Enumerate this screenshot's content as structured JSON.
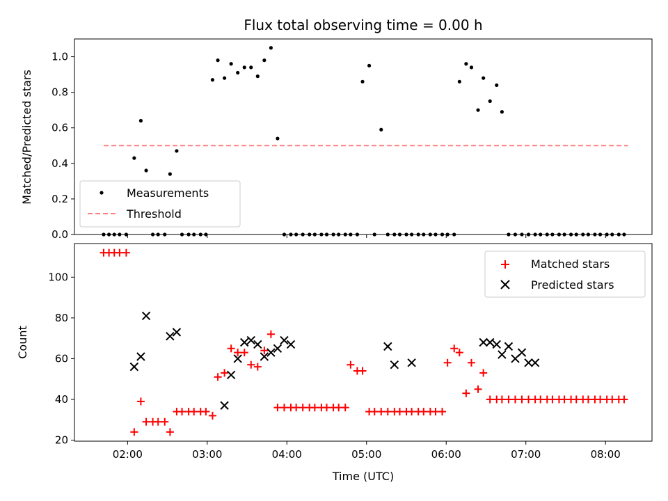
{
  "chart_data": [
    {
      "type": "scatter",
      "title": "Flux total observing time = 0.00 h",
      "ylabel": "Matched/Predicted stars",
      "xlabel": "",
      "xlim": [
        "01:20",
        "08:35"
      ],
      "ylim": [
        0,
        1.1
      ],
      "yticks": [
        "0.0",
        "0.2",
        "0.4",
        "0.6",
        "0.8",
        "1.0"
      ],
      "grid": false,
      "legend_position": "lower-left",
      "threshold": {
        "name": "Threshold",
        "value": 0.5,
        "x_start": "01:42",
        "x_end": "08:17",
        "color": "#ff7f7f"
      },
      "series": [
        {
          "name": "Measurements",
          "color": "#000000",
          "x": [
            "01:42",
            "01:46",
            "01:50",
            "01:54",
            "01:59",
            "02:05",
            "02:10",
            "02:14",
            "02:19",
            "02:23",
            "02:28",
            "02:32",
            "02:37",
            "02:41",
            "02:46",
            "02:50",
            "02:55",
            "02:59",
            "03:04",
            "03:08",
            "03:13",
            "03:18",
            "03:23",
            "03:28",
            "03:33",
            "03:38",
            "03:43",
            "03:48",
            "03:53",
            "03:58",
            "04:03",
            "04:07",
            "04:12",
            "04:17",
            "04:21",
            "04:26",
            "04:30",
            "04:35",
            "04:39",
            "04:44",
            "04:48",
            "04:53",
            "04:57",
            "05:02",
            "05:06",
            "05:11",
            "05:16",
            "05:21",
            "05:25",
            "05:30",
            "05:34",
            "05:39",
            "05:43",
            "05:48",
            "05:52",
            "05:57",
            "06:01",
            "06:06",
            "06:10",
            "06:15",
            "06:19",
            "06:24",
            "06:28",
            "06:33",
            "06:38",
            "06:42",
            "06:47",
            "06:52",
            "06:57",
            "07:02",
            "07:07",
            "07:11",
            "07:16",
            "07:20",
            "07:25",
            "07:29",
            "07:34",
            "07:38",
            "07:43",
            "07:47",
            "07:52",
            "07:56",
            "08:01",
            "08:05",
            "08:10",
            "08:14"
          ],
          "values": [
            0,
            0,
            0,
            0,
            0,
            0.43,
            0.64,
            0.36,
            0,
            0,
            0,
            0.34,
            0.47,
            0,
            0,
            0,
            0,
            0,
            0.87,
            0.98,
            0.88,
            0.96,
            0.91,
            0.94,
            0.94,
            0.89,
            0.98,
            1.05,
            0.54,
            0,
            0,
            0,
            0,
            0,
            0,
            0,
            0,
            0,
            0,
            0,
            0,
            0,
            0.86,
            0.95,
            0,
            0.59,
            0,
            0,
            0,
            0,
            0,
            0,
            0,
            0,
            0,
            0,
            0,
            0,
            0.86,
            0.96,
            0.94,
            0.7,
            0.88,
            0.75,
            0.84,
            0.69,
            0,
            0,
            0,
            0,
            0,
            0,
            0,
            0,
            0,
            0,
            0,
            0,
            0,
            0,
            0,
            0,
            0,
            0,
            0,
            0
          ]
        }
      ]
    },
    {
      "type": "scatter",
      "title": "",
      "xlabel": "Time (UTC)",
      "ylabel": "Count",
      "xlim": [
        "01:20",
        "08:35"
      ],
      "ylim": [
        19.5,
        116.5
      ],
      "xticks": [
        "02:00",
        "03:00",
        "04:00",
        "05:00",
        "06:00",
        "07:00",
        "08:00"
      ],
      "yticks": [
        "20",
        "40",
        "60",
        "80",
        "100"
      ],
      "grid": false,
      "legend_position": "upper-right",
      "series": [
        {
          "name": "Matched stars",
          "marker": "plus",
          "color": "#ff0000",
          "x": [
            "01:42",
            "01:46",
            "01:50",
            "01:54",
            "01:59",
            "02:05",
            "02:10",
            "02:14",
            "02:19",
            "02:23",
            "02:28",
            "02:32",
            "02:37",
            "02:41",
            "02:46",
            "02:50",
            "02:55",
            "02:59",
            "03:04",
            "03:08",
            "03:13",
            "03:18",
            "03:23",
            "03:28",
            "03:33",
            "03:38",
            "03:43",
            "03:48",
            "03:53",
            "03:58",
            "04:03",
            "04:07",
            "04:12",
            "04:17",
            "04:21",
            "04:26",
            "04:30",
            "04:35",
            "04:39",
            "04:44",
            "04:48",
            "04:53",
            "04:57",
            "05:02",
            "05:06",
            "05:11",
            "05:16",
            "05:21",
            "05:25",
            "05:30",
            "05:34",
            "05:39",
            "05:43",
            "05:48",
            "05:52",
            "05:57",
            "06:01",
            "06:06",
            "06:10",
            "06:15",
            "06:19",
            "06:24",
            "06:28",
            "06:33",
            "06:38",
            "06:42",
            "06:47",
            "06:52",
            "06:57",
            "07:02",
            "07:07",
            "07:11",
            "07:16",
            "07:20",
            "07:25",
            "07:29",
            "07:34",
            "07:38",
            "07:43",
            "07:47",
            "07:52",
            "07:56",
            "08:01",
            "08:05",
            "08:10",
            "08:14"
          ],
          "values": [
            112,
            112,
            112,
            112,
            112,
            24,
            39,
            29,
            29,
            29,
            29,
            24,
            34,
            34,
            34,
            34,
            34,
            34,
            32,
            51,
            53,
            65,
            63,
            63,
            57,
            56,
            64,
            72,
            36,
            36,
            36,
            36,
            36,
            36,
            36,
            36,
            36,
            36,
            36,
            36,
            57,
            54,
            54,
            34,
            34,
            34,
            34,
            34,
            34,
            34,
            34,
            34,
            34,
            34,
            34,
            34,
            58,
            65,
            63,
            43,
            58,
            45,
            53,
            40,
            40,
            40,
            40,
            40,
            40,
            40,
            40,
            40,
            40,
            40,
            40,
            40,
            40,
            40,
            40,
            40,
            40,
            40,
            40,
            40,
            40,
            40
          ]
        },
        {
          "name": "Predicted stars",
          "marker": "x",
          "color": "#000000",
          "x": [
            "02:05",
            "02:10",
            "02:14",
            "02:32",
            "02:37",
            "03:13",
            "03:18",
            "03:23",
            "03:28",
            "03:33",
            "03:38",
            "03:43",
            "03:48",
            "03:53",
            "03:58",
            "04:03",
            "05:16",
            "05:21",
            "05:34",
            "06:28",
            "06:33",
            "06:38",
            "06:42",
            "06:47",
            "06:52",
            "06:57",
            "07:02",
            "07:07"
          ],
          "values": [
            56,
            61,
            81,
            71,
            73,
            37,
            52,
            60,
            68,
            69,
            67,
            61,
            63,
            65,
            69,
            67,
            66,
            57,
            58,
            68,
            68,
            67,
            62,
            66,
            60,
            63,
            58,
            58
          ]
        }
      ]
    }
  ]
}
